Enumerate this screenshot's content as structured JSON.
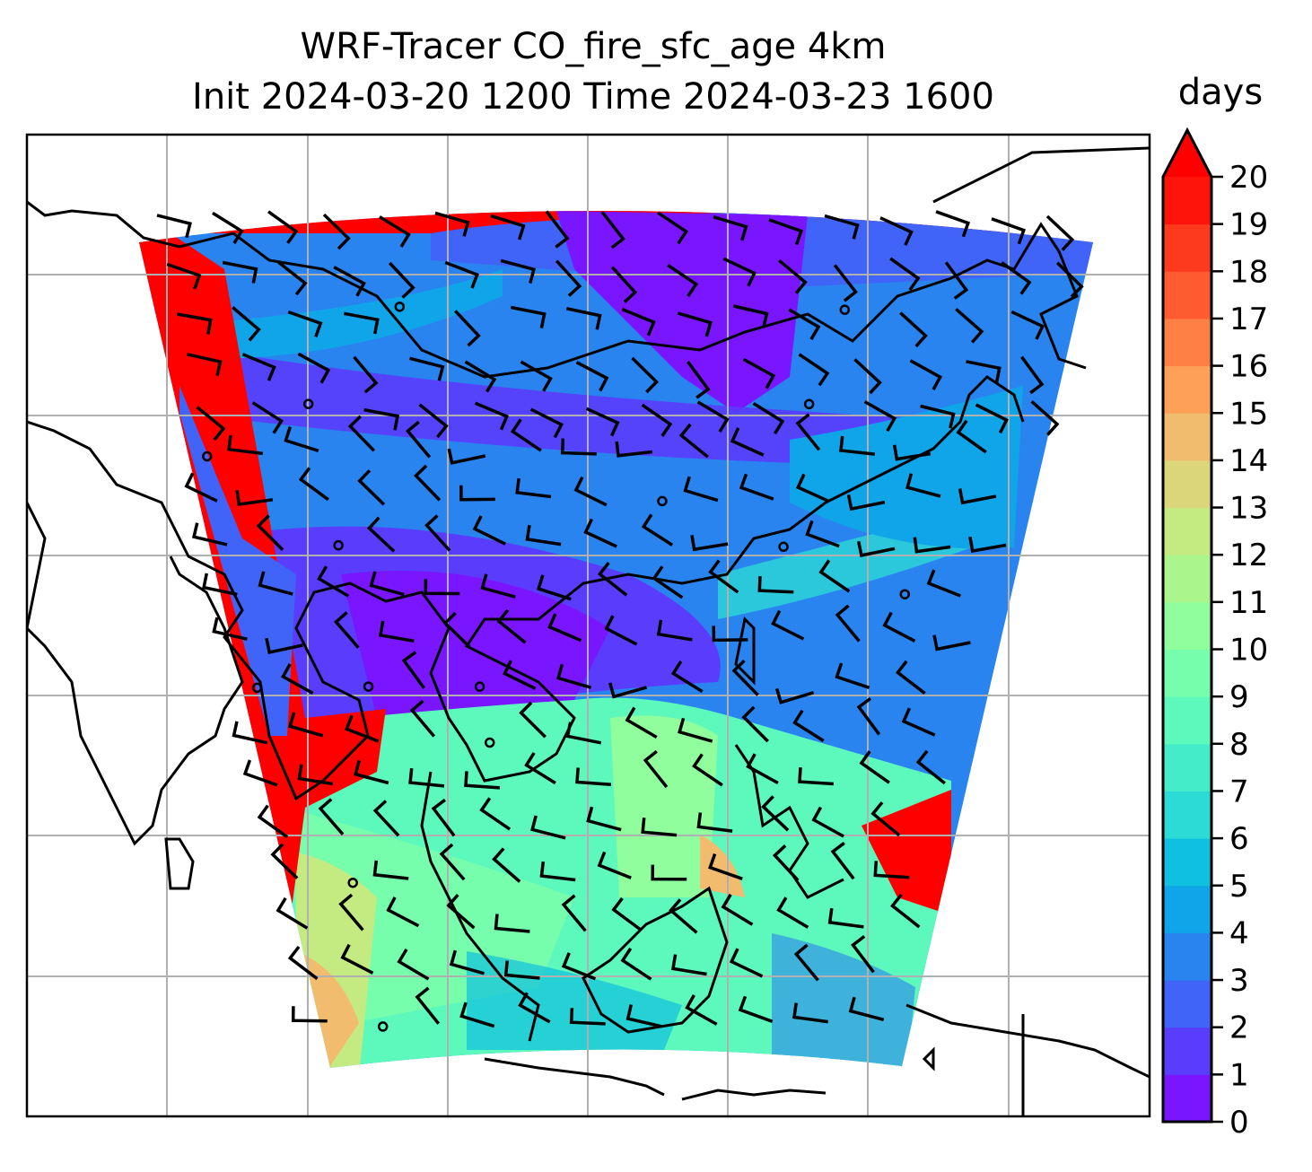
{
  "title": {
    "line1": "WRF-Tracer CO_fire_sfc_age 4km",
    "line2": "Init 2024-03-20 1200 Time 2024-03-23 1600"
  },
  "chart_data": {
    "type": "heatmap",
    "title": "WRF-Tracer CO_fire_sfc_age 4km",
    "subtitle": "Init 2024-03-20 1200 Time 2024-03-23 1600",
    "variable": "CO_fire_sfc_age",
    "overlay": "wind barbs",
    "colorbar": {
      "label": "days",
      "ticks": [
        "0",
        "1",
        "2",
        "3",
        "4",
        "5",
        "6",
        "7",
        "8",
        "9",
        "10",
        "11",
        "12",
        "13",
        "14",
        "15",
        "16",
        "17",
        "18",
        "19",
        "20"
      ],
      "range": [
        0,
        20
      ],
      "extend": "max",
      "colors": [
        "#7a16ff",
        "#5a3cfc",
        "#4064f7",
        "#2a84ef",
        "#10a4e8",
        "#10c0e0",
        "#2cdad6",
        "#44ecca",
        "#5cf8bc",
        "#76feac",
        "#90fe9c",
        "#aaf68c",
        "#c4ea82",
        "#dcd67a",
        "#f2bc6e",
        "#fea058",
        "#fe8044",
        "#fe5c30",
        "#fe3a1e",
        "#ff140c"
      ],
      "extend_color": "#ff0000"
    },
    "grid": true
  }
}
